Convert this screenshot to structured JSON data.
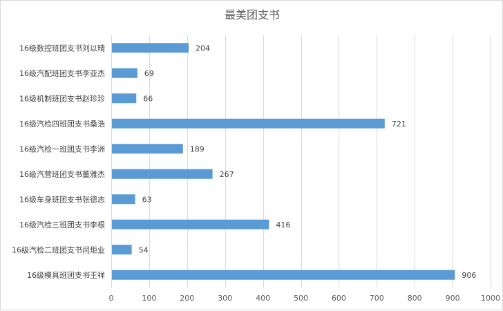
{
  "chart_data": {
    "type": "bar",
    "orientation": "horizontal",
    "title": "最美团支书",
    "xlabel": "",
    "ylabel": "",
    "xlim": [
      0,
      1000
    ],
    "x_ticks": [
      0,
      100,
      200,
      300,
      400,
      500,
      600,
      700,
      800,
      900,
      1000
    ],
    "grid": "vertical",
    "legend": "none",
    "bar_color": "#5B9BD5",
    "grid_color": "#D9D9D9",
    "categories": [
      "16级数控班团支书刘以晴",
      "16级汽配班团支书李亚杰",
      "16级机制班团支书赵珍珍",
      "16级汽检四班团支书桑浩",
      "16级汽检一班团支书李洲",
      "16级汽营班团支书董雅杰",
      "16级车身班团支书张德志",
      "16级汽检三班团支书李根",
      "16级汽检二班团支书闫炬业",
      "16级模具班团支书王祥"
    ],
    "values": [
      204,
      69,
      66,
      721,
      189,
      267,
      63,
      416,
      54,
      906
    ]
  }
}
